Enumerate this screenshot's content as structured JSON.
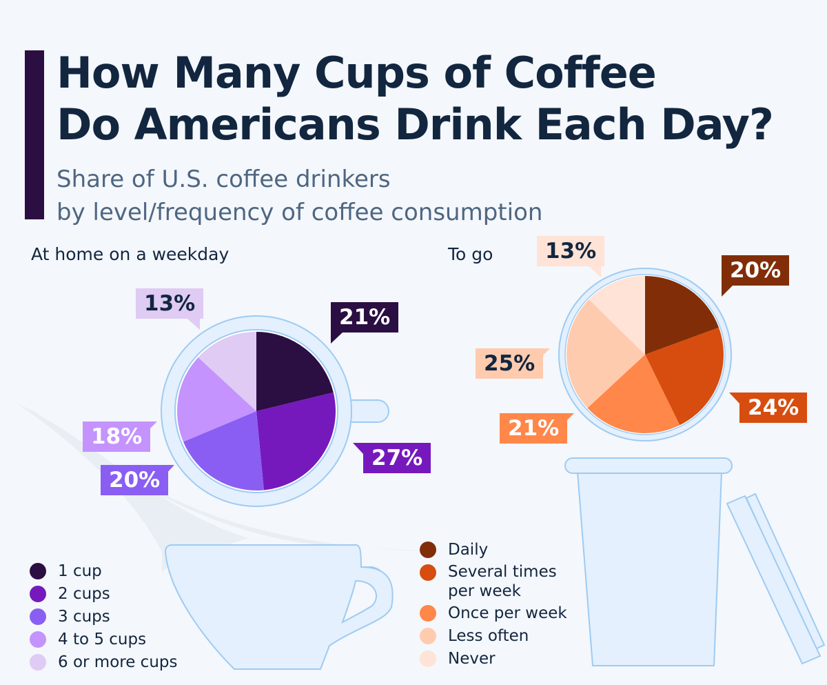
{
  "header": {
    "title_line1": "How Many Cups of Coffee",
    "title_line2": "Do Americans Drink Each Day?",
    "subtitle_line1": "Share of U.S. coffee drinkers",
    "subtitle_line2": "by level/frequency of coffee consumption",
    "accent_color": "#2b0e42"
  },
  "home": {
    "label": "At home on a weekday",
    "slices": [
      {
        "category": "1 cup",
        "value": 21,
        "label": "21%",
        "color": "#2b0e42"
      },
      {
        "category": "2 cups",
        "value": 27,
        "label": "27%",
        "color": "#7519bd"
      },
      {
        "category": "3 cups",
        "value": 20,
        "label": "20%",
        "color": "#8a5ef2"
      },
      {
        "category": "4 to 5 cups",
        "value": 18,
        "label": "18%",
        "color": "#c493fd"
      },
      {
        "category": "6 or more cups",
        "value": 13,
        "label": "13%",
        "color": "#dfcbf3"
      }
    ]
  },
  "togo": {
    "label": "To go",
    "slices": [
      {
        "category": "Daily",
        "value": 20,
        "label": "20%",
        "color": "#812e08"
      },
      {
        "category": "Several times per week",
        "value": 24,
        "label": "24%",
        "color": "#d64d0f"
      },
      {
        "category": "Once per week",
        "value": 21,
        "label": "21%",
        "color": "#ff8749"
      },
      {
        "category": "Less often",
        "value": 25,
        "label": "25%",
        "color": "#ffcbaf"
      },
      {
        "category": "Never",
        "value": 13,
        "label": "13%",
        "color": "#ffe3d6"
      }
    ]
  },
  "legend_home": [
    "1 cup",
    "2 cups",
    "3 cups",
    "4 to 5 cups",
    "6 or more cups"
  ],
  "legend_togo": [
    "Daily",
    "Several times\nper week",
    "Once per week",
    "Less often",
    "Never"
  ],
  "chart_data": [
    {
      "type": "pie",
      "title": "At home on a weekday",
      "categories": [
        "1 cup",
        "2 cups",
        "3 cups",
        "4 to 5 cups",
        "6 or more cups"
      ],
      "values": [
        21,
        27,
        20,
        18,
        13
      ],
      "unit": "%",
      "colors": [
        "#2b0e42",
        "#7519bd",
        "#8a5ef2",
        "#c493fd",
        "#dfcbf3"
      ],
      "legend_position": "bottom-left"
    },
    {
      "type": "pie",
      "title": "To go",
      "categories": [
        "Daily",
        "Several times per week",
        "Once per week",
        "Less often",
        "Never"
      ],
      "values": [
        20,
        24,
        21,
        25,
        13
      ],
      "unit": "%",
      "colors": [
        "#812e08",
        "#d64d0f",
        "#ff8749",
        "#ffcbaf",
        "#ffe3d6"
      ],
      "legend_position": "bottom-center"
    }
  ]
}
